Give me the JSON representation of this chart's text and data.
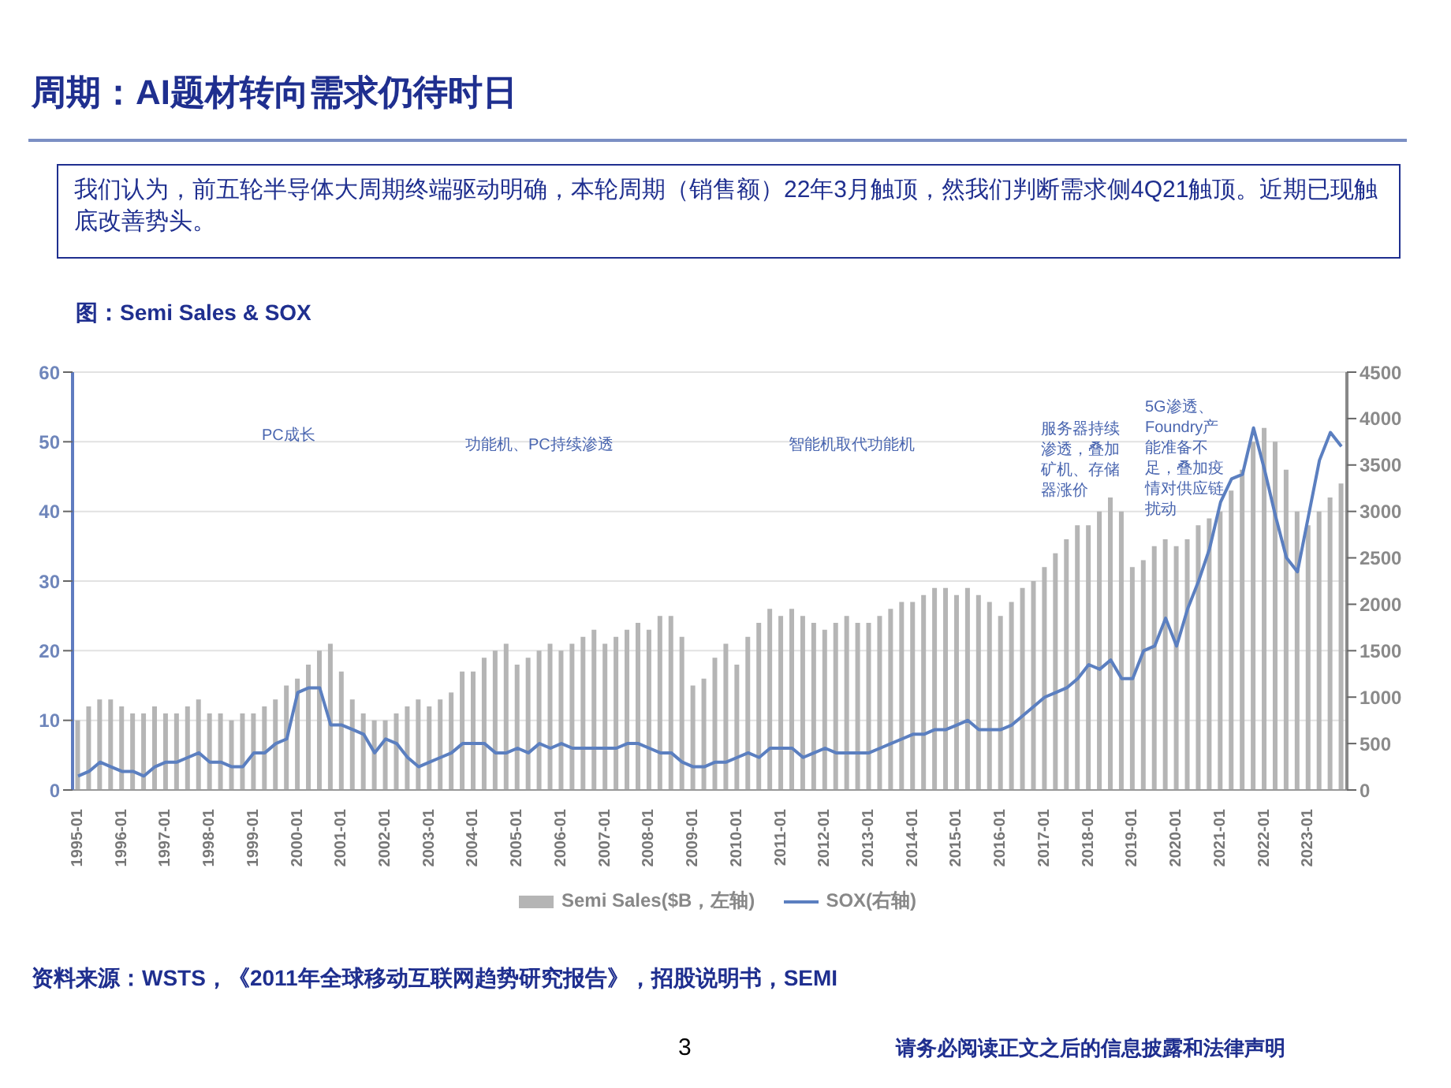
{
  "chart_data": {
    "type": "bar",
    "title": "周期：AI题材转向需求仍待时日",
    "subtitle": "我们认为，前五轮半导体大周期终端驱动明确，本轮周期（销售额）22年3月触顶，然我们判断需求侧4Q21触顶。近期已现触底改善势头。",
    "categories": [
      "1995-01",
      null,
      null,
      null,
      "1996-01",
      null,
      null,
      null,
      "1997-01",
      null,
      null,
      null,
      "1998-01",
      null,
      null,
      null,
      "1999-01",
      null,
      null,
      null,
      "2000-01",
      null,
      null,
      null,
      "2001-01",
      null,
      null,
      null,
      "2002-01",
      null,
      null,
      null,
      "2003-01",
      null,
      null,
      null,
      "2004-01",
      null,
      null,
      null,
      "2005-01",
      null,
      null,
      null,
      "2006-01",
      null,
      null,
      null,
      "2007-01",
      null,
      null,
      null,
      "2008-01",
      null,
      null,
      null,
      "2009-01",
      null,
      null,
      null,
      "2010-01",
      null,
      null,
      null,
      "2011-01",
      null,
      null,
      null,
      "2012-01",
      null,
      null,
      null,
      "2013-01",
      null,
      null,
      null,
      "2014-01",
      null,
      null,
      null,
      "2015-01",
      null,
      null,
      null,
      "2016-01",
      null,
      null,
      null,
      "2017-01",
      null,
      null,
      null,
      "2018-01",
      null,
      null,
      null,
      "2019-01",
      null,
      null,
      null,
      "2020-01",
      null,
      null,
      null,
      "2021-01",
      null,
      null,
      null,
      "2022-01",
      null,
      null,
      null,
      "2023-01",
      null,
      null,
      null
    ],
    "series": [
      {
        "name": "Semi Sales($B，左轴)",
        "color": "#b5b5b5",
        "values": [
          10,
          12,
          13,
          13,
          12,
          11,
          11,
          12,
          11,
          11,
          12,
          13,
          11,
          11,
          10,
          11,
          11,
          12,
          13,
          15,
          16,
          18,
          20,
          21,
          17,
          13,
          11,
          10,
          10,
          11,
          12,
          13,
          12,
          13,
          14,
          17,
          17,
          19,
          20,
          21,
          18,
          19,
          20,
          21,
          20,
          21,
          22,
          23,
          21,
          22,
          23,
          24,
          23,
          25,
          25,
          22,
          15,
          16,
          19,
          21,
          18,
          22,
          24,
          26,
          25,
          26,
          25,
          24,
          23,
          24,
          25,
          24,
          24,
          25,
          26,
          27,
          27,
          28,
          29,
          29,
          28,
          29,
          28,
          27,
          25,
          27,
          29,
          30,
          32,
          34,
          36,
          38,
          38,
          40,
          42,
          40,
          32,
          33,
          35,
          36,
          35,
          36,
          38,
          39,
          40,
          43,
          46,
          50,
          52,
          50,
          46,
          40,
          38,
          40,
          42,
          44
        ]
      },
      {
        "name": "SOX(右轴)",
        "type": "line",
        "axis": "y2",
        "color": "#5b7fc0",
        "values": [
          150,
          200,
          300,
          250,
          200,
          200,
          150,
          250,
          300,
          300,
          350,
          400,
          300,
          300,
          250,
          250,
          400,
          400,
          500,
          550,
          1050,
          1100,
          1100,
          700,
          700,
          650,
          600,
          400,
          550,
          500,
          350,
          250,
          300,
          350,
          400,
          500,
          500,
          500,
          400,
          400,
          450,
          400,
          500,
          450,
          500,
          450,
          450,
          450,
          450,
          450,
          500,
          500,
          450,
          400,
          400,
          300,
          250,
          250,
          300,
          300,
          350,
          400,
          350,
          450,
          450,
          450,
          350,
          400,
          450,
          400,
          400,
          400,
          400,
          450,
          500,
          550,
          600,
          600,
          650,
          650,
          700,
          750,
          650,
          650,
          650,
          700,
          800,
          900,
          1000,
          1050,
          1100,
          1200,
          1350,
          1300,
          1400,
          1200,
          1200,
          1500,
          1550,
          1850,
          1550,
          1950,
          2250,
          2600,
          3100,
          3350,
          3400,
          3900,
          3450,
          2950,
          2500,
          2350,
          2950,
          3550,
          3850,
          3700
        ]
      }
    ],
    "ylim": [
      0,
      60
    ],
    "yticks": [
      0,
      10,
      20,
      30,
      40,
      50,
      60
    ],
    "y2lim": [
      0,
      4500
    ],
    "y2ticks": [
      0,
      500,
      1000,
      1500,
      2000,
      2500,
      3000,
      3500,
      4000,
      4500
    ],
    "grid": "y",
    "legend": "bottom",
    "marker": "none",
    "annotations": [
      "图：Semi Sales & SOX",
      "PC成长",
      "功能机、PC持续渗透",
      "智能机取代功能机",
      "服务器持续渗透，叠加矿机、存储器涨价",
      "5G渗透、Foundry产能准备不足，叠加疫情对供应链扰动",
      "资料来源：WSTS，《2011年全球移动互联网趋势研究报告》，招股说明书，SEMI",
      "3",
      "请务必阅读正文之后的信息披露和法律声明"
    ]
  }
}
